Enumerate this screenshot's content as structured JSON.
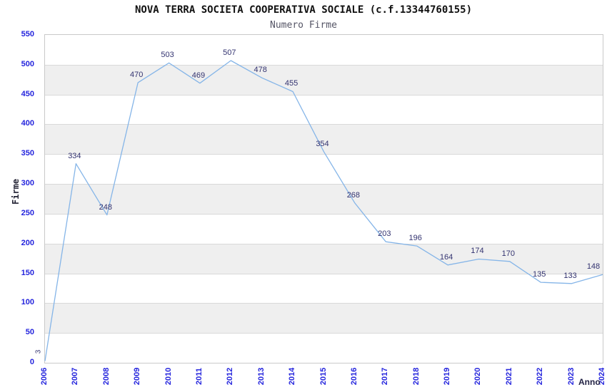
{
  "chart_data": {
    "type": "line",
    "title": "NOVA TERRA SOCIETA COOPERATIVA SOCIALE (c.f.13344760155)",
    "subtitle": "Numero Firme",
    "xlabel": "Anno",
    "ylabel": "Firme",
    "x": [
      "2006",
      "2007",
      "2008",
      "2009",
      "2010",
      "2011",
      "2012",
      "2013",
      "2014",
      "2015",
      "2016",
      "2017",
      "2018",
      "2019",
      "2020",
      "2021",
      "2022",
      "2023",
      "2024"
    ],
    "values": [
      3,
      334,
      248,
      470,
      503,
      469,
      507,
      478,
      455,
      354,
      268,
      203,
      196,
      164,
      174,
      170,
      135,
      133,
      148
    ],
    "ylim": [
      0,
      550
    ],
    "ytick_step": 50,
    "grid": "horizontal",
    "legend": "none",
    "colors": {
      "line": "#85b5e8",
      "tick_label": "#2424dd",
      "point_label": "#333370",
      "band": "#efefef",
      "gridline": "#d9d9d9",
      "plot_border": "#c9c9c9",
      "title": "#111111",
      "subtitle": "#555566",
      "axis_title": "#222244"
    }
  }
}
